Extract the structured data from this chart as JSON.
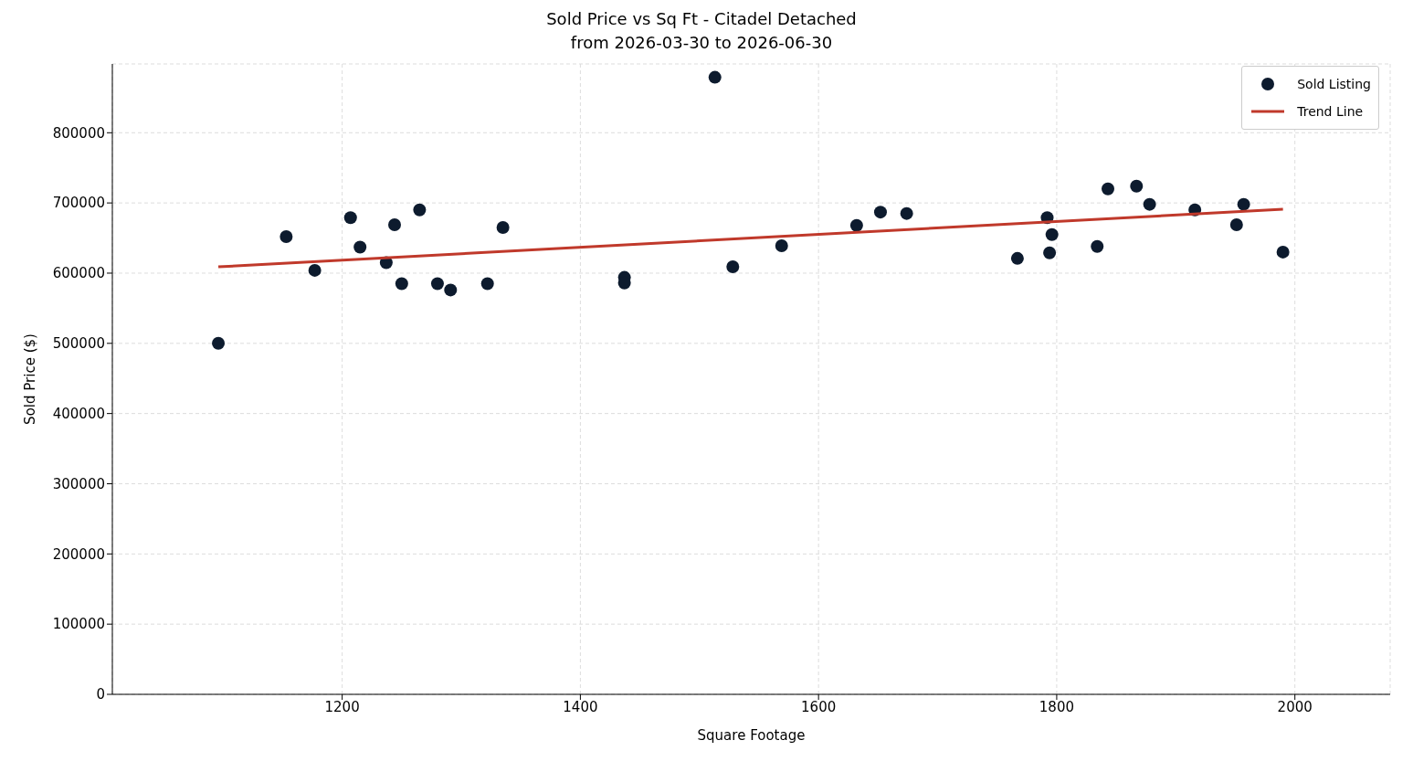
{
  "chart_data": {
    "type": "scatter",
    "title": "Sold Price vs Sq Ft - Citadel Detached",
    "subtitle": "from 2026-03-30 to 2026-06-30",
    "xlabel": "Square Footage",
    "ylabel": "Sold Price ($)",
    "xlim": [
      1007,
      2080
    ],
    "ylim": [
      0,
      898000
    ],
    "xticks": [
      1200,
      1400,
      1600,
      1800,
      2000
    ],
    "yticks": [
      0,
      100000,
      200000,
      300000,
      400000,
      500000,
      600000,
      700000,
      800000
    ],
    "grid": true,
    "legend": "top right",
    "series": [
      {
        "name": "Sold Listing",
        "marker": "circle",
        "color": "#0d1b2e",
        "x": [
          1096,
          1153,
          1177,
          1207,
          1215,
          1237,
          1244,
          1250,
          1265,
          1280,
          1291,
          1322,
          1335,
          1437,
          1437,
          1513,
          1528,
          1569,
          1632,
          1652,
          1674,
          1767,
          1792,
          1794,
          1796,
          1834,
          1843,
          1867,
          1878,
          1916,
          1951,
          1957,
          1990
        ],
        "values": [
          500000,
          652000,
          604000,
          679000,
          637000,
          615000,
          669000,
          585000,
          690000,
          585000,
          576000,
          585000,
          665000,
          594000,
          586000,
          879000,
          609000,
          639000,
          668000,
          687000,
          685000,
          621000,
          679000,
          629000,
          655000,
          638000,
          720000,
          724000,
          698000,
          690000,
          669000,
          698000,
          630000
        ]
      },
      {
        "name": "Trend Line",
        "type": "line",
        "color": "#c0392b",
        "x": [
          1096,
          1990
        ],
        "values": [
          609000,
          691000
        ]
      }
    ]
  }
}
